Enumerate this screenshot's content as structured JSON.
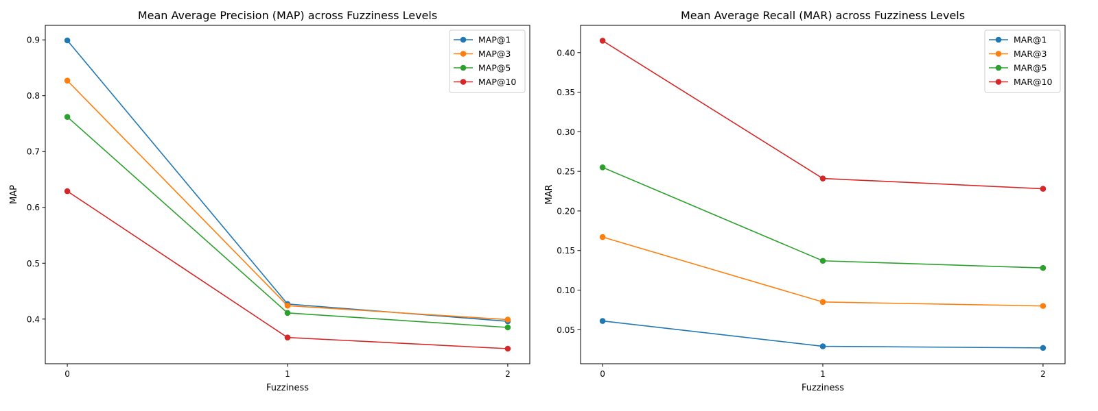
{
  "chart_data": [
    {
      "type": "line",
      "title": "Mean Average Precision (MAP) across Fuzziness Levels",
      "xlabel": "Fuzziness",
      "ylabel": "MAP",
      "x": [
        0,
        1,
        2
      ],
      "x_ticks": [
        "0",
        "1",
        "2"
      ],
      "xlim": [
        -0.1,
        2.1
      ],
      "ylim": [
        0.32,
        0.926
      ],
      "y_ticks": [
        0.4,
        0.5,
        0.6,
        0.7,
        0.8,
        0.9
      ],
      "y_tick_labels": [
        "0.4",
        "0.5",
        "0.6",
        "0.7",
        "0.8",
        "0.9"
      ],
      "grid": false,
      "legend": "top-right",
      "series": [
        {
          "name": "MAP@1",
          "color": "#1f77b4",
          "values": [
            0.899,
            0.427,
            0.396
          ]
        },
        {
          "name": "MAP@3",
          "color": "#ff7f0e",
          "values": [
            0.827,
            0.424,
            0.399
          ]
        },
        {
          "name": "MAP@5",
          "color": "#2ca02c",
          "values": [
            0.762,
            0.411,
            0.385
          ]
        },
        {
          "name": "MAP@10",
          "color": "#d62728",
          "values": [
            0.629,
            0.367,
            0.347
          ]
        }
      ]
    },
    {
      "type": "line",
      "title": "Mean Average Recall (MAR) across Fuzziness Levels",
      "xlabel": "Fuzziness",
      "ylabel": "MAR",
      "x": [
        0,
        1,
        2
      ],
      "x_ticks": [
        "0",
        "1",
        "2"
      ],
      "xlim": [
        -0.1,
        2.1
      ],
      "ylim": [
        0.007,
        0.4344
      ],
      "y_ticks": [
        0.05,
        0.1,
        0.15,
        0.2,
        0.25,
        0.3,
        0.35,
        0.4
      ],
      "y_tick_labels": [
        "0.05",
        "0.10",
        "0.15",
        "0.20",
        "0.25",
        "0.30",
        "0.35",
        "0.40"
      ],
      "grid": false,
      "legend": "top-right",
      "series": [
        {
          "name": "MAR@1",
          "color": "#1f77b4",
          "values": [
            0.061,
            0.029,
            0.027
          ]
        },
        {
          "name": "MAR@3",
          "color": "#ff7f0e",
          "values": [
            0.167,
            0.085,
            0.08
          ]
        },
        {
          "name": "MAR@5",
          "color": "#2ca02c",
          "values": [
            0.255,
            0.137,
            0.128
          ]
        },
        {
          "name": "MAR@10",
          "color": "#d62728",
          "values": [
            0.415,
            0.241,
            0.228
          ]
        }
      ]
    }
  ]
}
